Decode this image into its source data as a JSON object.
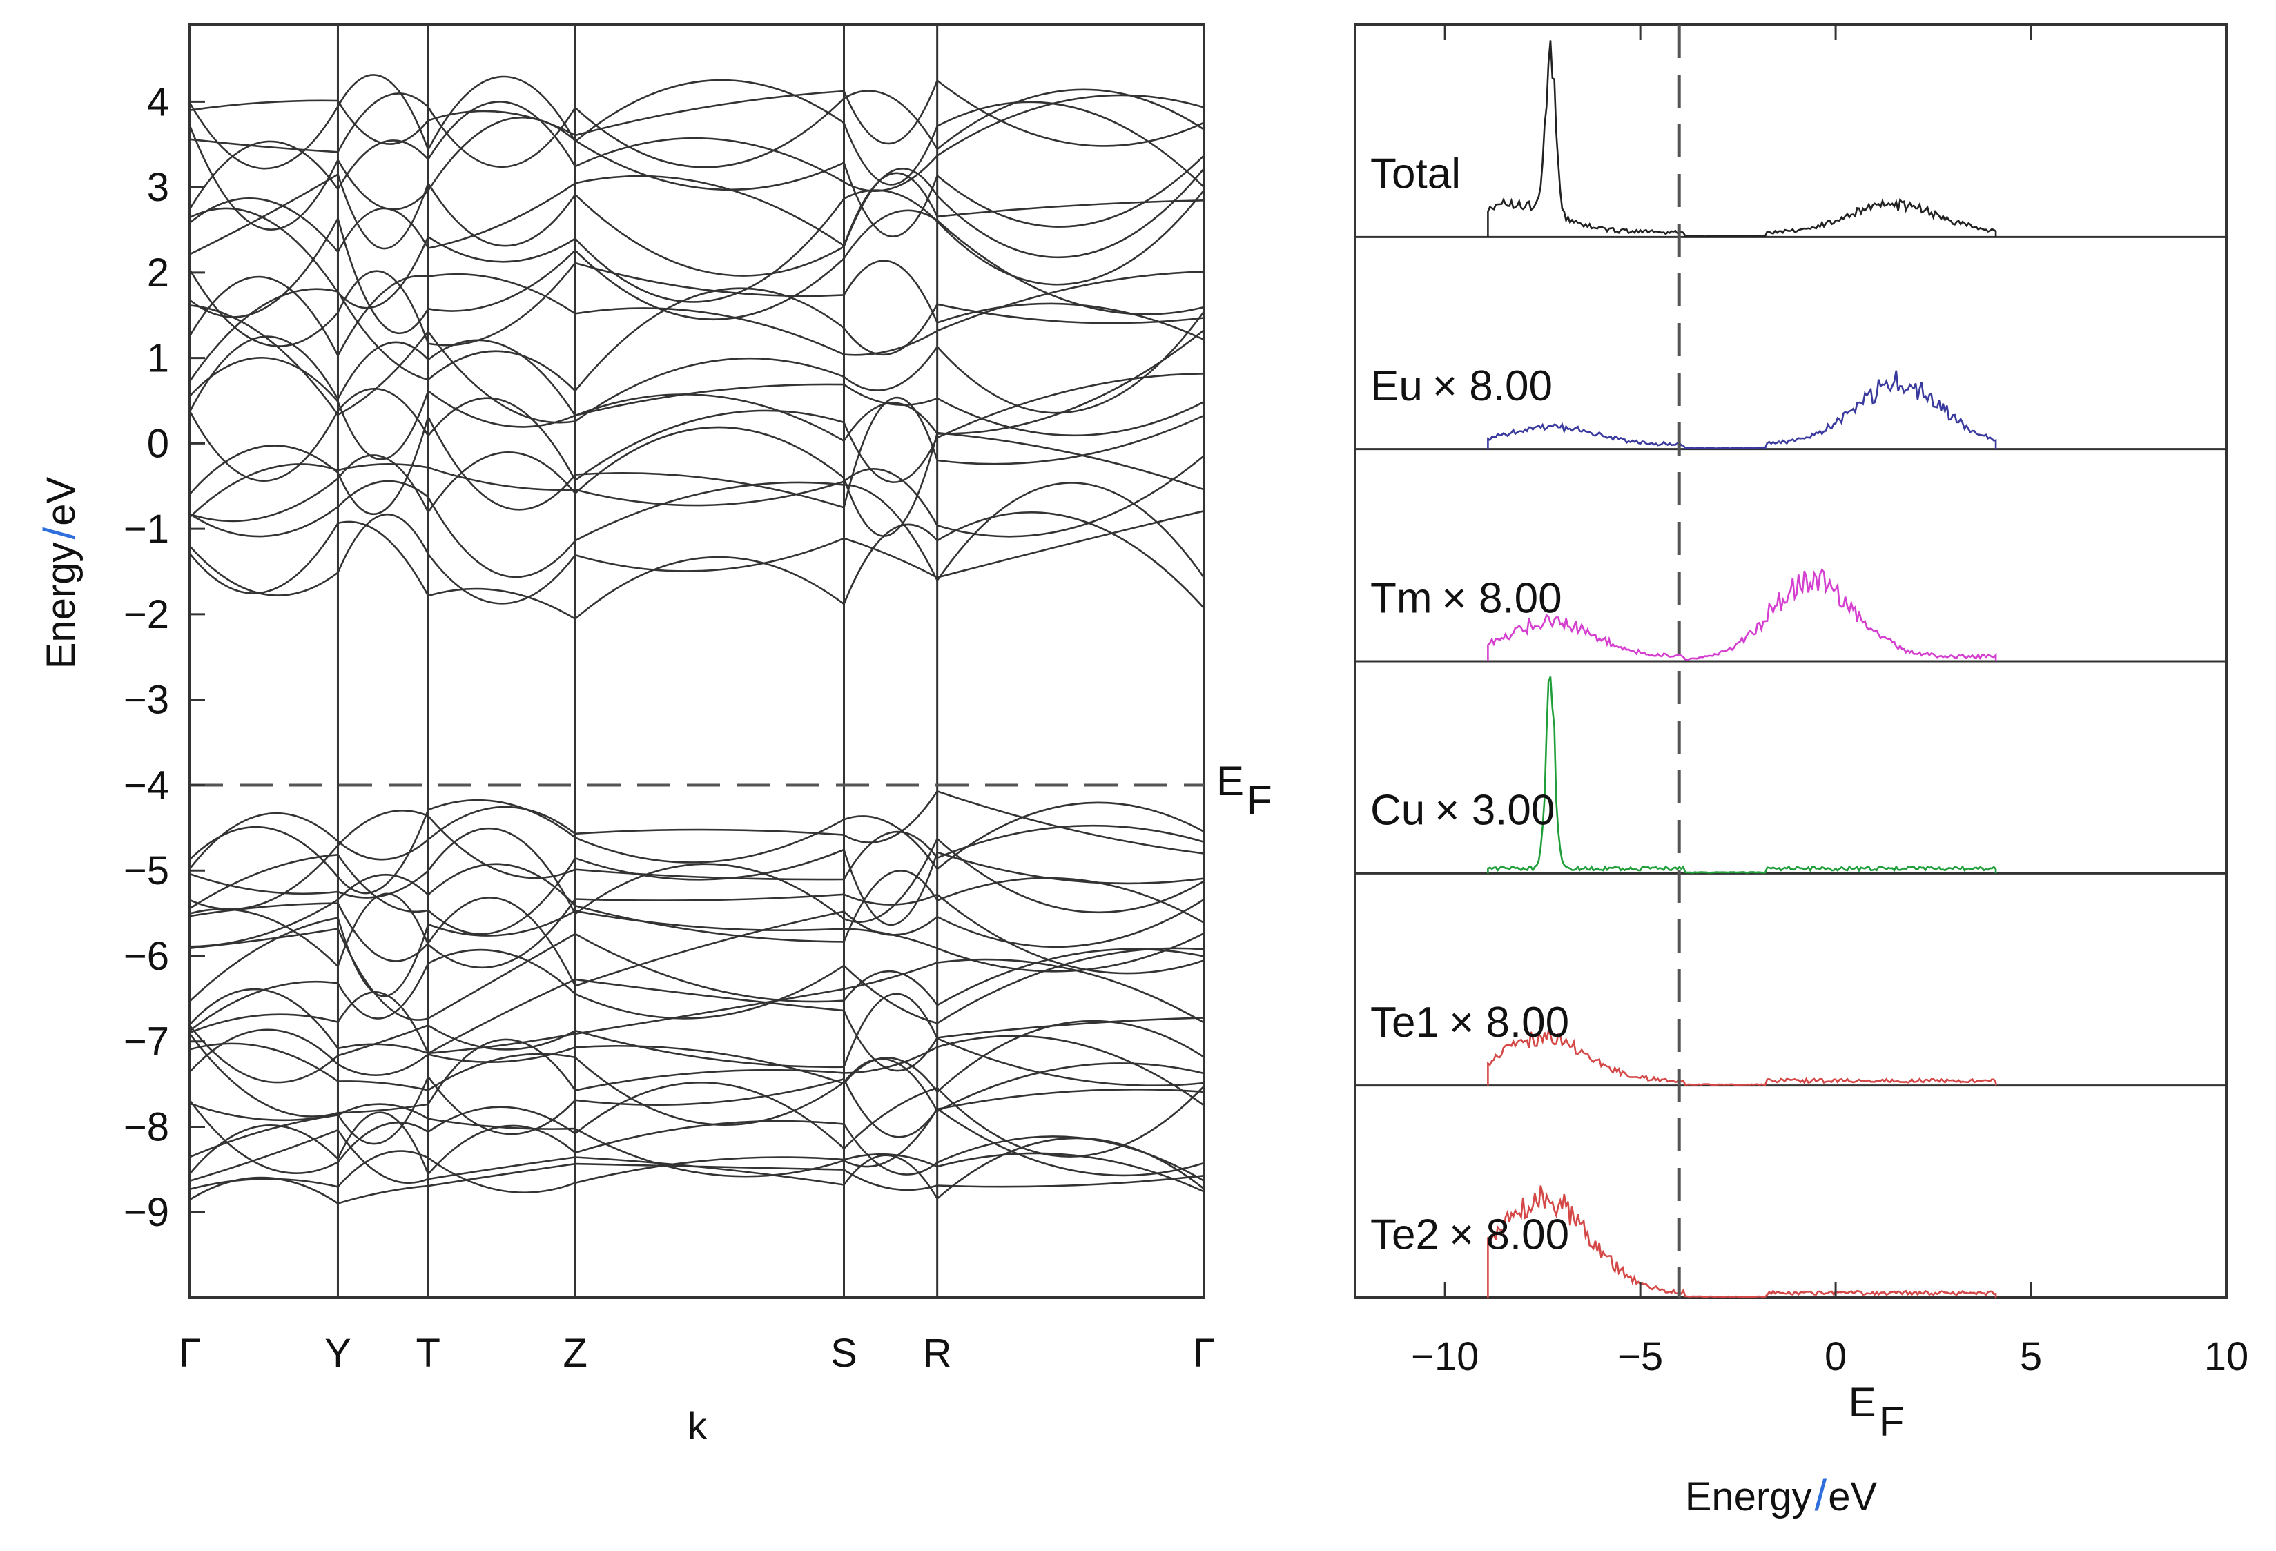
{
  "chart_data": [
    {
      "type": "line",
      "title": "",
      "xlabel": "k",
      "ylabel": "Energy",
      "ylabel_unit": "eV",
      "ylabel_sep": "/",
      "ylim": [
        -10.0,
        4.9
      ],
      "yticks": [
        4,
        3,
        2,
        1,
        0,
        -1,
        -2,
        -3,
        -4,
        -5,
        -6,
        -7,
        -8,
        -9
      ],
      "ytick_labels": [
        "4",
        "3",
        "2",
        "1",
        "0",
        "−1",
        "−2",
        "−3",
        "−4",
        "−5",
        "−6",
        "−7",
        "−8",
        "−9"
      ],
      "kpoint_labels": [
        "Γ",
        "Y",
        "T",
        "Z",
        "S",
        "R",
        "Γ"
      ],
      "kpoint_positions": [
        0,
        0.146,
        0.235,
        0.38,
        0.645,
        0.737,
        1.0
      ],
      "fermi_level": -4,
      "fermi_label": "E",
      "fermi_label_sub": "F",
      "band_count": 46,
      "conduction_band_count": 22,
      "valence_band_count": 24,
      "conduction_band_minimum": -2.2,
      "valence_band_maximum": -4.0,
      "valence_band_minimum": -8.9,
      "grid": false,
      "line_color": "#333333"
    },
    {
      "type": "line",
      "title": "",
      "xlabel": "Energy",
      "xlabel_unit": "eV",
      "xlabel_sep": "/",
      "xlim": [
        -12.3,
        10
      ],
      "xticks": [
        -10,
        -5,
        0,
        5,
        10
      ],
      "xtick_labels": [
        "−10",
        "−5",
        "0",
        "5",
        "10"
      ],
      "fermi_level": -4,
      "fermi_label": "E",
      "fermi_label_sub": "F",
      "series": [
        {
          "name": "Total",
          "multiplier": "",
          "color": "#222222",
          "peaks": [
            {
              "x": -7.3,
              "height": 1.0
            },
            {
              "x": -8.2,
              "height": 0.16
            },
            {
              "x": 1.5,
              "height": 0.16
            }
          ]
        },
        {
          "name": "Eu",
          "multiplier": "×  8.00",
          "color": "#3a3a9e",
          "peaks": [
            {
              "x": -7.3,
              "height": 0.1
            },
            {
              "x": 1.6,
              "height": 0.34
            }
          ]
        },
        {
          "name": "Tm",
          "multiplier": "×  8.00",
          "color": "#d43fcf",
          "peaks": [
            {
              "x": -7.3,
              "height": 0.2
            },
            {
              "x": -0.6,
              "height": 0.42
            }
          ]
        },
        {
          "name": "Cu",
          "multiplier": "×  3.00",
          "color": "#1f9e3a",
          "peaks": [
            {
              "x": -7.3,
              "height": 1.0
            }
          ]
        },
        {
          "name": "Te1",
          "multiplier": "× 8.00",
          "color": "#d44848",
          "peaks": [
            {
              "x": -7.5,
              "height": 0.24
            }
          ]
        },
        {
          "name": "Te2",
          "multiplier": "× 8.00",
          "color": "#d44848",
          "peaks": [
            {
              "x": -7.3,
              "height": 0.45
            },
            {
              "x": -8.5,
              "height": 0.12
            }
          ]
        }
      ],
      "energy_range": [
        -8.9,
        4.1
      ]
    }
  ]
}
